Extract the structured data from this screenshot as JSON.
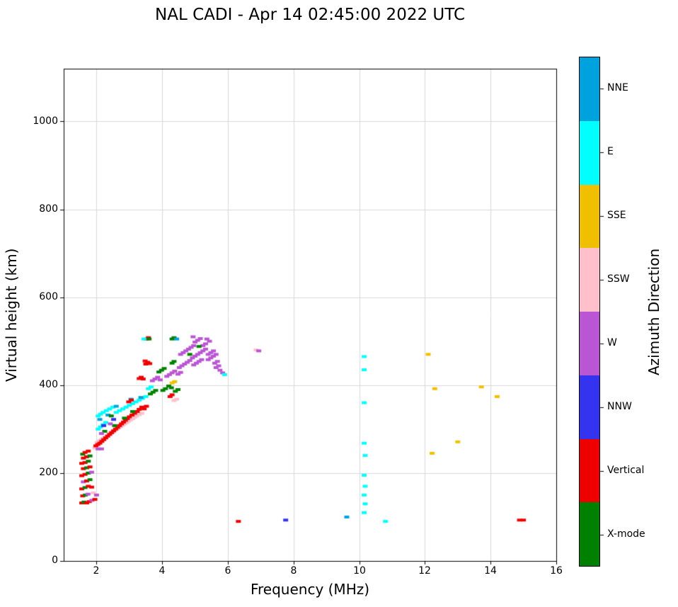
{
  "title": "NAL CADI - Apr 14 02:45:00 2022 UTC",
  "axes": {
    "x": {
      "label": "Frequency (MHz)",
      "ticks": [
        "2",
        "4",
        "6",
        "8",
        "10",
        "12",
        "14",
        "16"
      ]
    },
    "y": {
      "label": "Virtual height (km)",
      "ticks": [
        "0",
        "200",
        "400",
        "600",
        "800",
        "1000"
      ]
    }
  },
  "colorbar": {
    "title": "Azimuth Direction",
    "segments": [
      {
        "label": "NNE",
        "color": "#00a2dd"
      },
      {
        "label": "E",
        "color": "#00ffff"
      },
      {
        "label": "SSE",
        "color": "#f0c000"
      },
      {
        "label": "SSW",
        "color": "#ffc0cb"
      },
      {
        "label": "W",
        "color": "#ba55d3"
      },
      {
        "label": "NNW",
        "color": "#3333f0"
      },
      {
        "label": "Vertical",
        "color": "#ee0000"
      },
      {
        "label": "X-mode",
        "color": "#008000"
      }
    ]
  },
  "chart_data": {
    "type": "scatter",
    "title": "NAL CADI - Apr 14 02:45:00 2022 UTC",
    "xlabel": "Frequency (MHz)",
    "ylabel": "Virtual height (km)",
    "xlim": [
      1,
      16
    ],
    "ylim": [
      0,
      1120
    ],
    "grid": true,
    "legend_position": "right-colorbar",
    "categories": {
      "NNE": "#00a2dd",
      "E": "#00ffff",
      "SSE": "#f0c000",
      "SSW": "#ffc0cb",
      "W": "#ba55d3",
      "NNW": "#3333f0",
      "V": "#ee0000",
      "X": "#008000"
    },
    "category_names": {
      "NNE": "NNE",
      "E": "E",
      "SSE": "SSE",
      "SSW": "SSW",
      "W": "W",
      "NNW": "NNW",
      "V": "Vertical",
      "X": "X-mode"
    },
    "points": [
      [
        1.55,
        132,
        "V"
      ],
      [
        1.62,
        134,
        "X"
      ],
      [
        1.7,
        132,
        "V"
      ],
      [
        1.78,
        135,
        "V"
      ],
      [
        1.86,
        138,
        "W"
      ],
      [
        1.95,
        140,
        "V"
      ],
      [
        1.58,
        148,
        "V"
      ],
      [
        1.66,
        150,
        "X"
      ],
      [
        1.74,
        152,
        "W"
      ],
      [
        1.9,
        155,
        "SSW"
      ],
      [
        2.0,
        150,
        "W"
      ],
      [
        1.55,
        164,
        "V"
      ],
      [
        1.65,
        167,
        "X"
      ],
      [
        1.75,
        170,
        "V"
      ],
      [
        1.85,
        168,
        "V"
      ],
      [
        1.6,
        180,
        "W"
      ],
      [
        1.7,
        182,
        "V"
      ],
      [
        1.8,
        185,
        "X"
      ],
      [
        1.55,
        194,
        "V"
      ],
      [
        1.65,
        197,
        "V"
      ],
      [
        1.75,
        200,
        "X"
      ],
      [
        1.85,
        202,
        "W"
      ],
      [
        1.6,
        210,
        "V"
      ],
      [
        1.7,
        212,
        "X"
      ],
      [
        1.8,
        214,
        "V"
      ],
      [
        1.55,
        222,
        "V"
      ],
      [
        1.65,
        224,
        "V"
      ],
      [
        1.75,
        227,
        "X"
      ],
      [
        1.6,
        234,
        "V"
      ],
      [
        1.7,
        237,
        "V"
      ],
      [
        1.8,
        239,
        "X"
      ],
      [
        1.58,
        243,
        "X"
      ],
      [
        1.65,
        247,
        "V"
      ],
      [
        1.75,
        250,
        "V"
      ],
      [
        1.95,
        257,
        "SSW"
      ],
      [
        2.05,
        255,
        "W"
      ],
      [
        2.15,
        255,
        "W"
      ],
      [
        2.02,
        270,
        "SSW"
      ],
      [
        2.08,
        273,
        "SSW"
      ],
      [
        2.14,
        276,
        "SSW"
      ],
      [
        2.2,
        279,
        "SSW"
      ],
      [
        2.26,
        282,
        "SSW"
      ],
      [
        2.32,
        285,
        "SSW"
      ],
      [
        2.38,
        288,
        "SSW"
      ],
      [
        2.44,
        291,
        "SSW"
      ],
      [
        2.5,
        294,
        "SSW"
      ],
      [
        2.56,
        297,
        "SSW"
      ],
      [
        2.62,
        300,
        "SSW"
      ],
      [
        2.68,
        303,
        "SSW"
      ],
      [
        2.74,
        306,
        "SSW"
      ],
      [
        2.8,
        309,
        "SSW"
      ],
      [
        2.86,
        312,
        "SSW"
      ],
      [
        2.92,
        315,
        "SSW"
      ],
      [
        2.98,
        318,
        "SSW"
      ],
      [
        3.04,
        321,
        "SSW"
      ],
      [
        3.1,
        324,
        "SSW"
      ],
      [
        3.16,
        327,
        "SSW"
      ],
      [
        3.22,
        330,
        "SSW"
      ],
      [
        3.3,
        333,
        "SSW"
      ],
      [
        3.38,
        336,
        "SSW"
      ],
      [
        1.98,
        262,
        "V"
      ],
      [
        2.04,
        265,
        "V"
      ],
      [
        2.1,
        268,
        "V"
      ],
      [
        2.16,
        272,
        "V"
      ],
      [
        2.22,
        276,
        "V"
      ],
      [
        2.28,
        280,
        "V"
      ],
      [
        2.34,
        284,
        "V"
      ],
      [
        2.4,
        288,
        "V"
      ],
      [
        2.46,
        292,
        "V"
      ],
      [
        2.52,
        296,
        "V"
      ],
      [
        2.58,
        300,
        "V"
      ],
      [
        2.64,
        304,
        "V"
      ],
      [
        2.7,
        308,
        "V"
      ],
      [
        2.76,
        312,
        "V"
      ],
      [
        2.82,
        316,
        "V"
      ],
      [
        2.88,
        320,
        "V"
      ],
      [
        2.94,
        324,
        "V"
      ],
      [
        3.0,
        328,
        "V"
      ],
      [
        3.08,
        332,
        "V"
      ],
      [
        3.16,
        336,
        "V"
      ],
      [
        3.24,
        340,
        "V"
      ],
      [
        2.05,
        300,
        "E"
      ],
      [
        2.12,
        305,
        "E"
      ],
      [
        2.2,
        310,
        "E"
      ],
      [
        2.28,
        315,
        "E"
      ],
      [
        2.05,
        330,
        "E"
      ],
      [
        2.12,
        334,
        "E"
      ],
      [
        2.2,
        338,
        "E"
      ],
      [
        2.3,
        342,
        "E"
      ],
      [
        2.4,
        346,
        "E"
      ],
      [
        2.5,
        350,
        "E"
      ],
      [
        2.6,
        338,
        "E"
      ],
      [
        2.7,
        342,
        "E"
      ],
      [
        2.8,
        346,
        "E"
      ],
      [
        2.9,
        350,
        "E"
      ],
      [
        3.0,
        354,
        "E"
      ],
      [
        3.1,
        358,
        "E"
      ],
      [
        3.2,
        362,
        "E"
      ],
      [
        3.3,
        366,
        "E"
      ],
      [
        3.4,
        370,
        "E"
      ],
      [
        3.5,
        374,
        "E"
      ],
      [
        2.1,
        322,
        "NNE"
      ],
      [
        2.35,
        332,
        "NNE"
      ],
      [
        2.6,
        352,
        "NNE"
      ],
      [
        3.05,
        368,
        "NNE"
      ],
      [
        3.35,
        372,
        "NNE"
      ],
      [
        2.25,
        295,
        "X"
      ],
      [
        2.55,
        308,
        "X"
      ],
      [
        2.85,
        325,
        "X"
      ],
      [
        3.1,
        340,
        "X"
      ],
      [
        2.45,
        330,
        "X"
      ],
      [
        2.15,
        290,
        "W"
      ],
      [
        2.42,
        312,
        "W"
      ],
      [
        2.22,
        308,
        "NNW"
      ],
      [
        2.52,
        322,
        "NNW"
      ],
      [
        3.3,
        345,
        "V"
      ],
      [
        3.38,
        350,
        "V"
      ],
      [
        3.45,
        346,
        "V"
      ],
      [
        3.52,
        352,
        "V"
      ],
      [
        3.3,
        415,
        "V"
      ],
      [
        3.36,
        418,
        "V"
      ],
      [
        3.42,
        414,
        "V"
      ],
      [
        3.5,
        448,
        "V"
      ],
      [
        3.56,
        452,
        "V"
      ],
      [
        3.62,
        449,
        "V"
      ],
      [
        3.48,
        455,
        "V"
      ],
      [
        3.52,
        505,
        "V"
      ],
      [
        3.58,
        508,
        "V"
      ],
      [
        3.64,
        380,
        "X"
      ],
      [
        3.72,
        384,
        "X"
      ],
      [
        3.8,
        388,
        "X"
      ],
      [
        3.7,
        410,
        "W"
      ],
      [
        3.78,
        414,
        "W"
      ],
      [
        3.86,
        418,
        "W"
      ],
      [
        3.94,
        412,
        "W"
      ],
      [
        3.9,
        430,
        "X"
      ],
      [
        3.98,
        434,
        "X"
      ],
      [
        4.06,
        438,
        "X"
      ],
      [
        4.02,
        388,
        "X"
      ],
      [
        4.1,
        392,
        "X"
      ],
      [
        3.6,
        505,
        "X"
      ],
      [
        4.3,
        505,
        "X"
      ],
      [
        4.36,
        508,
        "X"
      ],
      [
        4.3,
        450,
        "X"
      ],
      [
        4.36,
        454,
        "X"
      ],
      [
        4.14,
        420,
        "W"
      ],
      [
        4.22,
        424,
        "W"
      ],
      [
        4.3,
        428,
        "W"
      ],
      [
        4.38,
        432,
        "W"
      ],
      [
        4.2,
        398,
        "X"
      ],
      [
        4.28,
        394,
        "X"
      ],
      [
        4.4,
        386,
        "X"
      ],
      [
        4.48,
        390,
        "X"
      ],
      [
        4.3,
        405,
        "SSE"
      ],
      [
        4.38,
        408,
        "SSE"
      ],
      [
        4.36,
        365,
        "SSW"
      ],
      [
        4.44,
        368,
        "SSW"
      ],
      [
        4.3,
        378,
        "V"
      ],
      [
        4.24,
        374,
        "V"
      ],
      [
        3.44,
        505,
        "E"
      ],
      [
        4.44,
        505,
        "NNE"
      ],
      [
        3.58,
        392,
        "E"
      ],
      [
        3.66,
        396,
        "E"
      ],
      [
        2.98,
        362,
        "V"
      ],
      [
        3.06,
        366,
        "V"
      ],
      [
        4.52,
        440,
        "W"
      ],
      [
        4.6,
        444,
        "W"
      ],
      [
        4.68,
        448,
        "W"
      ],
      [
        4.76,
        452,
        "W"
      ],
      [
        4.84,
        456,
        "W"
      ],
      [
        4.56,
        470,
        "W"
      ],
      [
        4.64,
        474,
        "W"
      ],
      [
        4.72,
        478,
        "W"
      ],
      [
        4.8,
        482,
        "W"
      ],
      [
        4.88,
        486,
        "W"
      ],
      [
        4.96,
        490,
        "W"
      ],
      [
        4.92,
        462,
        "W"
      ],
      [
        5.0,
        466,
        "W"
      ],
      [
        5.08,
        470,
        "W"
      ],
      [
        5.16,
        474,
        "W"
      ],
      [
        5.0,
        498,
        "W"
      ],
      [
        5.08,
        502,
        "W"
      ],
      [
        5.16,
        506,
        "W"
      ],
      [
        4.94,
        510,
        "W"
      ],
      [
        5.24,
        478,
        "W"
      ],
      [
        5.32,
        482,
        "W"
      ],
      [
        5.24,
        490,
        "W"
      ],
      [
        5.32,
        494,
        "W"
      ],
      [
        5.4,
        470,
        "W"
      ],
      [
        5.48,
        474,
        "W"
      ],
      [
        5.4,
        458,
        "W"
      ],
      [
        5.48,
        462,
        "W"
      ],
      [
        5.56,
        466,
        "W"
      ],
      [
        5.64,
        470,
        "W"
      ],
      [
        5.56,
        478,
        "W"
      ],
      [
        5.6,
        450,
        "W"
      ],
      [
        5.68,
        454,
        "W"
      ],
      [
        5.72,
        444,
        "W"
      ],
      [
        5.76,
        434,
        "W"
      ],
      [
        5.84,
        428,
        "W"
      ],
      [
        5.64,
        440,
        "W"
      ],
      [
        5.2,
        458,
        "W"
      ],
      [
        5.12,
        454,
        "W"
      ],
      [
        5.04,
        450,
        "W"
      ],
      [
        4.96,
        446,
        "W"
      ],
      [
        5.36,
        505,
        "W"
      ],
      [
        5.44,
        500,
        "W"
      ],
      [
        4.48,
        425,
        "W"
      ],
      [
        4.56,
        429,
        "W"
      ],
      [
        5.9,
        424,
        "E"
      ],
      [
        4.84,
        470,
        "X"
      ],
      [
        5.12,
        488,
        "X"
      ],
      [
        6.32,
        90,
        "V"
      ],
      [
        6.86,
        480,
        "SSW"
      ],
      [
        6.94,
        478,
        "W"
      ],
      [
        7.76,
        93,
        "NNW"
      ],
      [
        9.62,
        100,
        "NNE"
      ],
      [
        10.15,
        465,
        "E"
      ],
      [
        10.15,
        435,
        "E"
      ],
      [
        10.15,
        360,
        "E"
      ],
      [
        10.15,
        268,
        "E"
      ],
      [
        10.18,
        240,
        "E"
      ],
      [
        10.15,
        195,
        "E"
      ],
      [
        10.18,
        170,
        "E"
      ],
      [
        10.15,
        150,
        "E"
      ],
      [
        10.18,
        130,
        "E"
      ],
      [
        10.15,
        110,
        "E"
      ],
      [
        10.8,
        90,
        "E"
      ],
      [
        12.1,
        470,
        "SSE"
      ],
      [
        12.3,
        392,
        "SSE"
      ],
      [
        12.22,
        245,
        "SSE"
      ],
      [
        13.0,
        271,
        "SSE"
      ],
      [
        13.72,
        396,
        "SSE"
      ],
      [
        14.2,
        374,
        "SSE"
      ],
      [
        14.88,
        93,
        "V"
      ],
      [
        15.0,
        93,
        "V"
      ]
    ]
  }
}
